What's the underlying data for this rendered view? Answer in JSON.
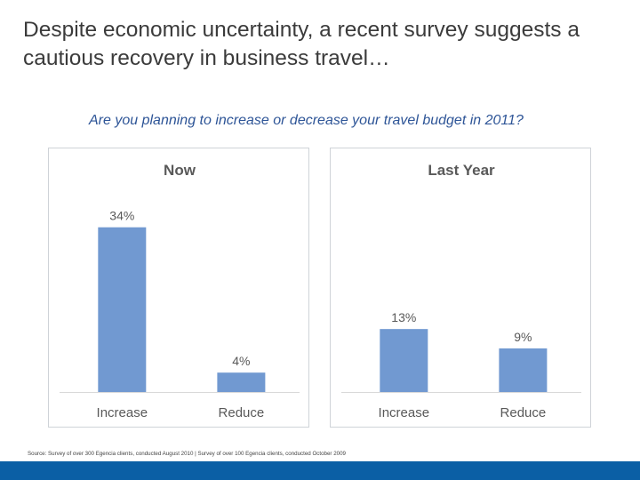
{
  "slide": {
    "title": "Despite economic uncertainty,  a recent survey suggests a cautious recovery in business travel…",
    "subtitle": "Are you planning to increase or decrease your travel budget in 2011?",
    "source": "Source: Survey of over 300 Egencia clients, conducted August 2010 | Survey of over 100 Egencia clients, conducted October 2009"
  },
  "colors": {
    "bar": "#7199d1",
    "panel_border": "#cfd3d8",
    "footer": "#0b5fa5",
    "title_text": "#3b3b3b",
    "subtitle_text": "#2e5597",
    "chart_text": "#595959"
  },
  "chart_data": [
    {
      "type": "bar",
      "title": "Now",
      "categories": [
        "Increase",
        "Reduce"
      ],
      "values": [
        34,
        4
      ],
      "value_labels": [
        "34%",
        "4%"
      ],
      "ylim": [
        0,
        40
      ],
      "grid": false,
      "legend": "none"
    },
    {
      "type": "bar",
      "title": "Last Year",
      "categories": [
        "Increase",
        "Reduce"
      ],
      "values": [
        13,
        9
      ],
      "value_labels": [
        "13%",
        "9%"
      ],
      "ylim": [
        0,
        40
      ],
      "grid": false,
      "legend": "none"
    }
  ]
}
